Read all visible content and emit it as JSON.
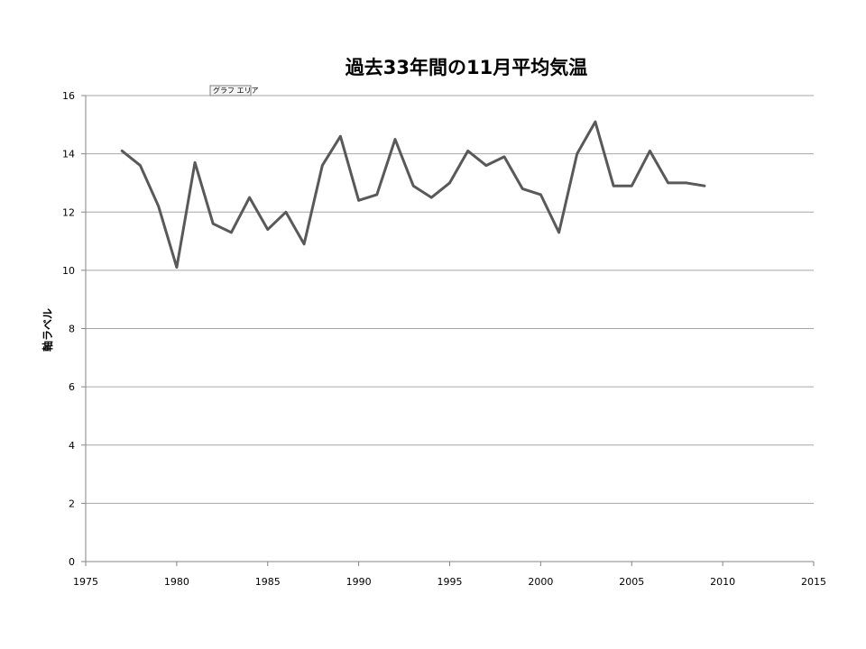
{
  "chart_data": {
    "type": "line",
    "title": "過去33年間の11月平均気温",
    "xlabel": "",
    "ylabel": "軸ラベル",
    "xlim": [
      1975,
      2015
    ],
    "ylim": [
      0,
      16
    ],
    "x_ticks": [
      1975,
      1980,
      1985,
      1990,
      1995,
      2000,
      2005,
      2010,
      2015
    ],
    "y_ticks": [
      0,
      2,
      4,
      6,
      8,
      10,
      12,
      14,
      16
    ],
    "grid": "horizontal",
    "legend": "none",
    "series": [
      {
        "color": "#595959",
        "x": [
          1977,
          1978,
          1979,
          1980,
          1981,
          1982,
          1983,
          1984,
          1985,
          1986,
          1987,
          1988,
          1989,
          1990,
          1991,
          1992,
          1993,
          1994,
          1995,
          1996,
          1997,
          1998,
          1999,
          2000,
          2001,
          2002,
          2003,
          2004,
          2005,
          2006,
          2007,
          2008,
          2009
        ],
        "y": [
          14.1,
          13.6,
          12.2,
          10.1,
          13.7,
          11.6,
          11.3,
          12.5,
          11.4,
          12.0,
          10.9,
          13.6,
          14.6,
          12.4,
          12.6,
          14.5,
          12.9,
          12.5,
          13.0,
          14.1,
          13.6,
          13.9,
          12.8,
          12.6,
          11.3,
          14.0,
          15.1,
          12.9,
          12.9,
          14.1,
          13.0,
          13.0,
          12.9
        ]
      }
    ]
  },
  "tooltip": {
    "text": "グラフ エリア"
  }
}
